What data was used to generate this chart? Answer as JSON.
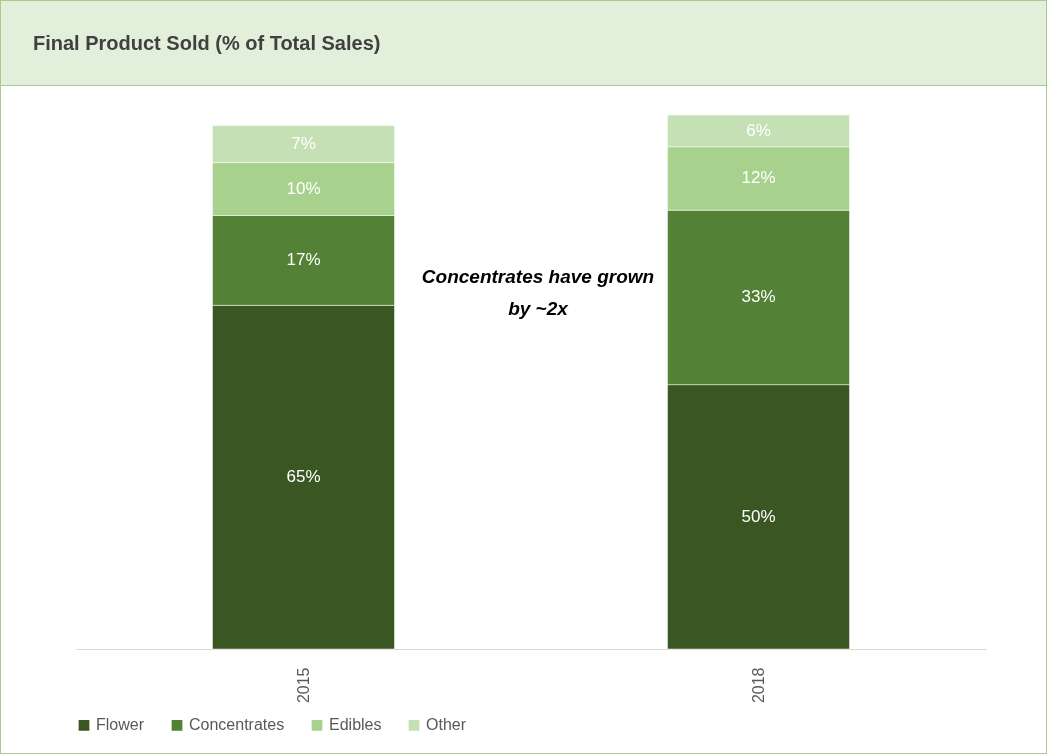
{
  "chart_data": {
    "type": "bar",
    "title": "Final Product Sold (% of Total Sales)",
    "stacked": true,
    "legend": "bottom",
    "categories": [
      "2015",
      "2018"
    ],
    "series": [
      {
        "name": "Flower",
        "color": "#3a5723",
        "values": [
          65,
          50
        ],
        "value_labels": [
          "65%",
          "50%"
        ]
      },
      {
        "name": "Concentrates",
        "color": "#538135",
        "values": [
          17,
          33
        ],
        "value_labels": [
          "17%",
          "33%"
        ]
      },
      {
        "name": "Edibles",
        "color": "#a9d18e",
        "values": [
          10,
          12
        ],
        "value_labels": [
          "10%",
          "12%"
        ]
      },
      {
        "name": "Other",
        "color": "#c5e0b4",
        "values": [
          7,
          6
        ],
        "value_labels": [
          "7%",
          "6%"
        ]
      }
    ],
    "annotations": [
      "Concentrates have grown by ~2x"
    ]
  }
}
